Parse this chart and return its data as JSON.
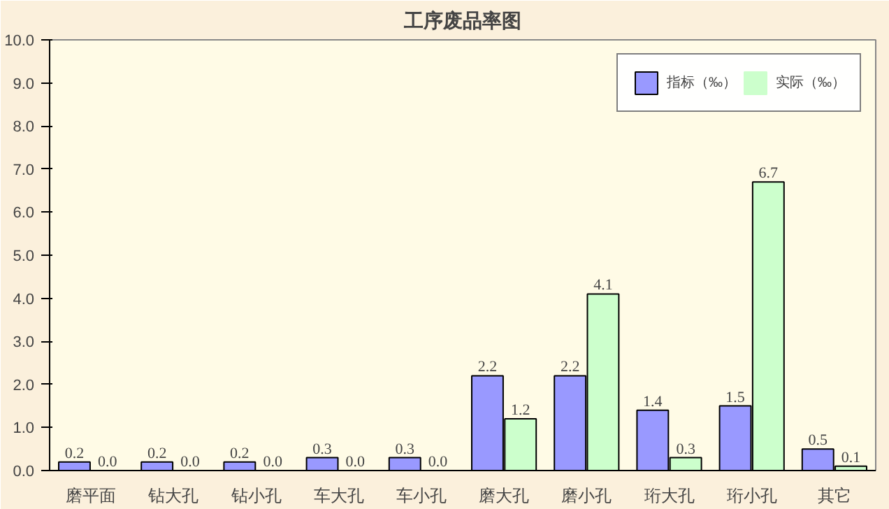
{
  "chart_data": {
    "type": "bar",
    "title": "工序废品率图",
    "categories": [
      "磨平面",
      "钻大孔",
      "钻小孔",
      "车大孔",
      "车小孔",
      "磨大孔",
      "磨小孔",
      "珩大孔",
      "珩小孔",
      "其它"
    ],
    "series": [
      {
        "name": "指标（‰）",
        "color": "#9999ff",
        "values": [
          0.2,
          0.2,
          0.2,
          0.3,
          0.3,
          2.2,
          2.2,
          1.4,
          1.5,
          0.5
        ],
        "value_labels": [
          "0.2",
          "0.2",
          "0.2",
          "0.3",
          "0.3",
          "2.2",
          "2.2",
          "1.4",
          "1.5",
          "0.5"
        ]
      },
      {
        "name": "实际（‰）",
        "color": "#ccffcc",
        "values": [
          0,
          0,
          0,
          0,
          0,
          1.2,
          4.1,
          0.3,
          6.7,
          0.1
        ],
        "value_labels": [
          "0.0",
          "0.0",
          "0.0",
          "0.0",
          "0.0",
          "1.2",
          "4.1",
          "0.3",
          "6.7",
          "0.1"
        ]
      }
    ],
    "ylim": [
      0,
      10
    ],
    "yticks": [
      {
        "value": 0,
        "label": "0.0"
      },
      {
        "value": 1,
        "label": "1.0"
      },
      {
        "value": 2,
        "label": "2.0"
      },
      {
        "value": 3,
        "label": "3.0"
      },
      {
        "value": 4,
        "label": "4.0"
      },
      {
        "value": 5,
        "label": "5.0"
      },
      {
        "value": 6,
        "label": "6.0"
      },
      {
        "value": 7,
        "label": "7.0"
      },
      {
        "value": 8,
        "label": "8.0"
      },
      {
        "value": 9,
        "label": "9.0"
      },
      {
        "value": 10,
        "label": "10.0"
      }
    ],
    "grid": false,
    "legend": "top right"
  }
}
